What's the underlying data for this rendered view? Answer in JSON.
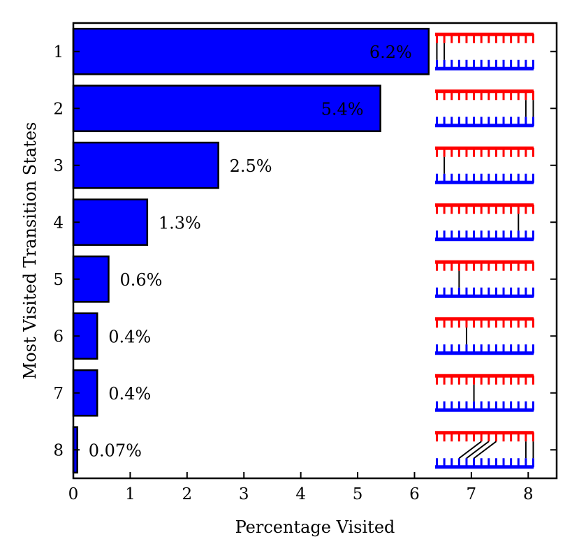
{
  "chart_data": {
    "type": "bar",
    "orientation": "horizontal",
    "title": "",
    "xlabel": "Percentage Visited",
    "ylabel": "Most Visited Transition States",
    "categories": [
      "1",
      "2",
      "3",
      "4",
      "5",
      "6",
      "7",
      "8"
    ],
    "values": [
      6.25,
      5.4,
      2.55,
      1.3,
      0.62,
      0.42,
      0.42,
      0.07
    ],
    "value_labels": [
      "6.2%",
      "5.4%",
      "2.5%",
      "1.3%",
      "0.6%",
      "0.4%",
      "0.4%",
      "0.07%"
    ],
    "xlim": [
      0,
      8.5
    ],
    "xticks": [
      "0",
      "1",
      "2",
      "3",
      "4",
      "5",
      "6",
      "7",
      "8"
    ],
    "grid": false,
    "legend": "none",
    "colors": {
      "bar_fill": "#0000ff",
      "bar_edge": "#000000",
      "inside_label": "#ffffff",
      "top_strand": "#ff0000",
      "bottom_strand": "#0000ff",
      "bond": "#000000"
    },
    "insets": {
      "description": "strand schematic per state: red comb on top, blue comb below, black bonds",
      "teeth": 14,
      "bonds": [
        [
          [
            0,
            0
          ],
          [
            1,
            1
          ]
        ],
        [
          [
            12,
            12
          ],
          [
            13,
            13
          ]
        ],
        [
          [
            1,
            1
          ]
        ],
        [
          [
            11,
            11
          ]
        ],
        [
          [
            3,
            3
          ]
        ],
        [
          [
            4,
            4
          ]
        ],
        [
          [
            5,
            5
          ]
        ],
        [
          [
            6,
            3
          ],
          [
            7,
            4
          ],
          [
            8,
            5
          ],
          [
            12,
            12
          ],
          [
            13,
            13
          ]
        ]
      ]
    }
  }
}
